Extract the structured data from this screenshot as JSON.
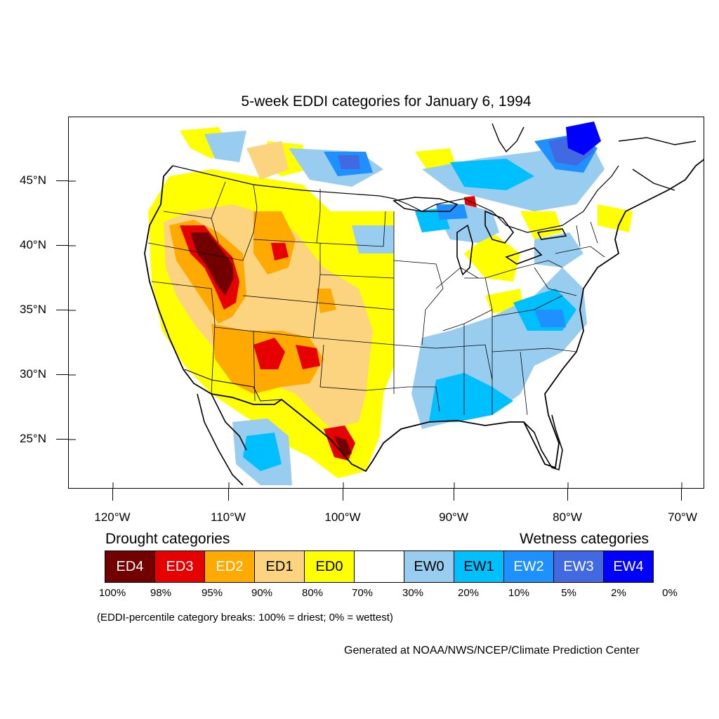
{
  "title": "5-week EDDI categories for January 6, 1994",
  "axes": {
    "lat_labels": [
      "45°N",
      "40°N",
      "35°N",
      "30°N",
      "25°N"
    ],
    "lon_labels": [
      "120°W",
      "110°W",
      "100°W",
      "90°W",
      "80°W",
      "70°W"
    ]
  },
  "legend": {
    "drought_heading": "Drought categories",
    "wetness_heading": "Wetness categories",
    "categories": [
      {
        "label": "ED4",
        "color": "#730000",
        "text_color": "#ffffff"
      },
      {
        "label": "ED3",
        "color": "#e60000",
        "text_color": "#ffffff"
      },
      {
        "label": "ED2",
        "color": "#ffaa00",
        "text_color": "#ffffff"
      },
      {
        "label": "ED1",
        "color": "#fcd37f",
        "text_color": "#000000"
      },
      {
        "label": "ED0",
        "color": "#ffff00",
        "text_color": "#000000"
      },
      {
        "label": "",
        "color": "#ffffff",
        "text_color": "#000000"
      },
      {
        "label": "EW0",
        "color": "#99cdf0",
        "text_color": "#000000"
      },
      {
        "label": "EW1",
        "color": "#00bfff",
        "text_color": "#000000"
      },
      {
        "label": "EW2",
        "color": "#1e90ff",
        "text_color": "#ffffff"
      },
      {
        "label": "EW3",
        "color": "#4169e1",
        "text_color": "#ffffff"
      },
      {
        "label": "EW4",
        "color": "#0000ff",
        "text_color": "#ffffff"
      }
    ],
    "breaks": [
      "100%",
      "98%",
      "95%",
      "90%",
      "80%",
      "70%",
      "30%",
      "20%",
      "10%",
      "5%",
      "2%",
      "0%"
    ]
  },
  "note": "(EDDI-percentile category breaks: 100% = driest; 0% = wettest)",
  "credit": "Generated at NOAA/NWS/NCEP/Climate Prediction Center"
}
